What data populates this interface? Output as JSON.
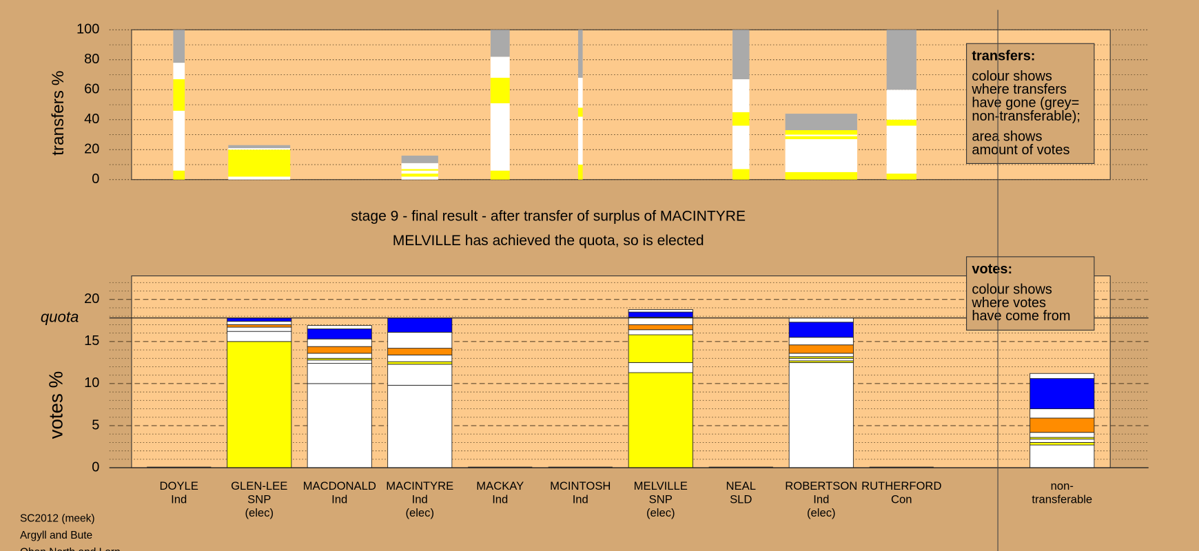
{
  "chart_data": [
    {
      "type": "transfer-bar",
      "ylabel": "transfers %",
      "ylim": [
        0,
        100
      ],
      "yticks": [
        0,
        20,
        40,
        60,
        80,
        100
      ],
      "minor_yticks": [
        10,
        30,
        50,
        70,
        90
      ],
      "grid": true,
      "sizes": [
        15,
        81,
        null,
        48,
        25,
        6,
        null,
        22,
        94,
        39
      ],
      "bars": [
        [
          {
            "color": "#ffff00",
            "value": 6
          },
          {
            "color": "#ffffff",
            "value": 40
          },
          {
            "color": "#ffff00",
            "value": 21
          },
          {
            "color": "#ffffff",
            "value": 11
          },
          {
            "color": "#aaaaaa",
            "value": 22
          }
        ],
        [
          {
            "color": "#ffffff",
            "value": 2
          },
          {
            "color": "#ffff00",
            "value": 18
          },
          {
            "color": "#ffffff",
            "value": 1
          },
          {
            "color": "#aaaaaa",
            "value": 2
          }
        ],
        null,
        [
          {
            "color": "#ffffff",
            "value": 2
          },
          {
            "color": "#ffff00",
            "value": 2
          },
          {
            "color": "#ffffff",
            "value": 2
          },
          {
            "color": "#ffff00",
            "value": 1
          },
          {
            "color": "#ffffff",
            "value": 4
          },
          {
            "color": "#aaaaaa",
            "value": 5
          }
        ],
        [
          {
            "color": "#ffff00",
            "value": 6
          },
          {
            "color": "#ffffff",
            "value": 45
          },
          {
            "color": "#ffff00",
            "value": 17
          },
          {
            "color": "#ffffff",
            "value": 14
          },
          {
            "color": "#aaaaaa",
            "value": 18
          }
        ],
        [
          {
            "color": "#ffff00",
            "value": 10
          },
          {
            "color": "#ffffff",
            "value": 32
          },
          {
            "color": "#ffff00",
            "value": 6
          },
          {
            "color": "#ffffff",
            "value": 20
          },
          {
            "color": "#aaaaaa",
            "value": 32
          }
        ],
        null,
        [
          {
            "color": "#ffff00",
            "value": 7
          },
          {
            "color": "#ffffff",
            "value": 29
          },
          {
            "color": "#ffff00",
            "value": 9
          },
          {
            "color": "#ffffff",
            "value": 22
          },
          {
            "color": "#aaaaaa",
            "value": 33
          }
        ],
        [
          {
            "color": "#ffff00",
            "value": 5
          },
          {
            "color": "#ffffff",
            "value": 22
          },
          {
            "color": "#ffff00",
            "value": 2
          },
          {
            "color": "#ffffff",
            "value": 1
          },
          {
            "color": "#ffff00",
            "value": 3
          },
          {
            "color": "#aaaaaa",
            "value": 11
          }
        ],
        [
          {
            "color": "#ffff00",
            "value": 4
          },
          {
            "color": "#ffffff",
            "value": 32
          },
          {
            "color": "#ffff00",
            "value": 4
          },
          {
            "color": "#ffffff",
            "value": 20
          },
          {
            "color": "#aaaaaa",
            "value": 40
          }
        ]
      ],
      "note": [
        [
          "transfers:"
        ],
        [
          "colour shows",
          "where transfers",
          "have gone (grey=",
          "non-transferable);"
        ],
        [
          "area shows",
          "amount of votes"
        ]
      ]
    },
    {
      "type": "vote-bar",
      "title": [
        "stage 9 - final result - after transfer of surplus of MACINTYRE",
        "MELVILLE has achieved the quota, so is elected"
      ],
      "ylabel": "votes %",
      "ylim": [
        0,
        22.8
      ],
      "yticks": [
        0,
        5,
        10,
        15,
        20
      ],
      "minor_yticks": [
        1,
        2,
        3,
        4,
        6,
        7,
        8,
        9,
        11,
        12,
        13,
        14,
        16,
        17,
        18,
        19,
        21,
        22
      ],
      "grid": true,
      "quota": {
        "value": 17.8,
        "label": "quota"
      },
      "categories": [
        [
          "DOYLE",
          "Ind"
        ],
        [
          "GLEN-LEE",
          "SNP",
          "(elec)"
        ],
        [
          "MACDONALD",
          "Ind"
        ],
        [
          "MACINTYRE",
          "Ind",
          "(elec)"
        ],
        [
          "MACKAY",
          "Ind"
        ],
        [
          "MCINTOSH",
          "Ind"
        ],
        [
          "MELVILLE",
          "SNP",
          "(elec)"
        ],
        [
          "NEAL",
          "SLD"
        ],
        [
          "ROBERTSON",
          "Ind",
          "(elec)"
        ],
        [
          "RUTHERFORD",
          "Con"
        ],
        [
          "non-",
          "transferable"
        ]
      ],
      "bars": [
        [],
        [
          {
            "color": "#ffff00",
            "value": 15
          },
          {
            "color": "#ffffff",
            "value": 1.2
          },
          {
            "color": "#ffffff",
            "value": 0.5
          },
          {
            "color": "#ff8c00",
            "value": 0.3
          },
          {
            "color": "#ffffff",
            "value": 0.4
          },
          {
            "color": "#0000ff",
            "value": 0.4
          }
        ],
        [
          {
            "color": "#ffffff",
            "value": 10
          },
          {
            "color": "#ffffff",
            "value": 2.4
          },
          {
            "color": "#ffffff",
            "value": 0.4
          },
          {
            "color": "#ffff00",
            "value": 0.2
          },
          {
            "color": "#ffffff",
            "value": 0.6
          },
          {
            "color": "#ff8c00",
            "value": 0.8
          },
          {
            "color": "#ffffff",
            "value": 0.9
          },
          {
            "color": "#0000ff",
            "value": 1.2
          },
          {
            "color": "#ffffff",
            "value": 0.4
          }
        ],
        [
          {
            "color": "#ffffff",
            "value": 9.8
          },
          {
            "color": "#ffffff",
            "value": 2.5
          },
          {
            "color": "#ffff00",
            "value": 0.3
          },
          {
            "color": "#ffffff",
            "value": 0.8
          },
          {
            "color": "#ff8c00",
            "value": 0.8
          },
          {
            "color": "#ffffff",
            "value": 1.9
          },
          {
            "color": "#0000ff",
            "value": 1.7
          }
        ],
        [],
        [],
        [
          {
            "color": "#ffff00",
            "value": 11.3
          },
          {
            "color": "#ffffff",
            "value": 1.2
          },
          {
            "color": "#ffff00",
            "value": 3.3
          },
          {
            "color": "#ffffff",
            "value": 0.6
          },
          {
            "color": "#ff8c00",
            "value": 0.6
          },
          {
            "color": "#ffffff",
            "value": 0.9
          },
          {
            "color": "#0000ff",
            "value": 0.6
          },
          {
            "color": "#ffffff",
            "value": 0.3
          }
        ],
        [],
        [
          {
            "color": "#ffffff",
            "value": 12.5
          },
          {
            "color": "#ffff00",
            "value": 0.2
          },
          {
            "color": "#ffffff",
            "value": 0.3
          },
          {
            "color": "#ffff00",
            "value": 0.2
          },
          {
            "color": "#ffffff",
            "value": 0.4
          },
          {
            "color": "#ff8c00",
            "value": 1.0
          },
          {
            "color": "#ffffff",
            "value": 0.9
          },
          {
            "color": "#0000ff",
            "value": 1.8
          },
          {
            "color": "#ffffff",
            "value": 0.5
          }
        ],
        [],
        [
          {
            "color": "#ffffff",
            "value": 2.7
          },
          {
            "color": "#ffff00",
            "value": 0.3
          },
          {
            "color": "#ffffff",
            "value": 0.4
          },
          {
            "color": "#ffff00",
            "value": 0.2
          },
          {
            "color": "#ffffff",
            "value": 0.6
          },
          {
            "color": "#ff8c00",
            "value": 1.7
          },
          {
            "color": "#ffffff",
            "value": 1.1
          },
          {
            "color": "#0000ff",
            "value": 3.6
          },
          {
            "color": "#ffffff",
            "value": 0.6
          }
        ]
      ],
      "note": [
        [
          "votes:"
        ],
        [
          "colour shows",
          "where votes",
          "have come from"
        ]
      ]
    }
  ],
  "footer": [
    "SC2012 (meek)",
    "Argyll and Bute",
    "Oban North and Lorn"
  ]
}
